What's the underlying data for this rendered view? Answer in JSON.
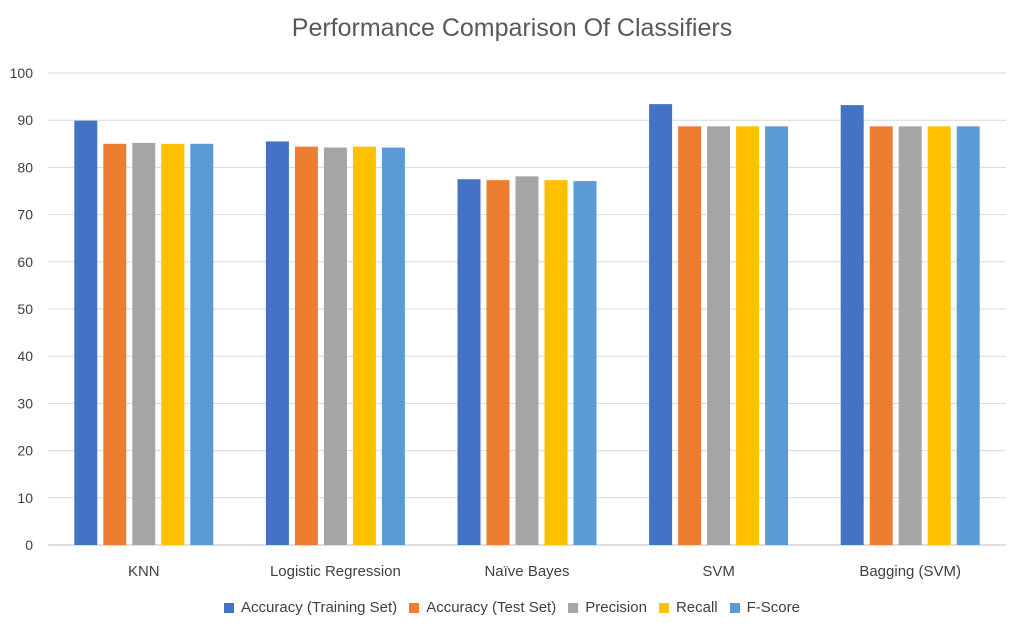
{
  "chart_data": {
    "type": "bar",
    "title": "Performance Comparison Of Classifiers",
    "xlabel": "",
    "ylabel": "",
    "ylim": [
      0,
      100
    ],
    "yticks": [
      "0",
      "10",
      "20",
      "30",
      "40",
      "50",
      "60",
      "70",
      "80",
      "90",
      "100"
    ],
    "grid": true,
    "legend_position": "bottom",
    "categories": [
      "KNN",
      "Logistic Regression",
      "Naïve Bayes",
      "SVM",
      "Bagging (SVM)"
    ],
    "series": [
      {
        "name": "Accuracy (Training Set)",
        "color": "#4472C4",
        "values": [
          89.9,
          85.5,
          77.5,
          93.4,
          93.2
        ]
      },
      {
        "name": "Accuracy (Test Set)",
        "color": "#ED7D31",
        "values": [
          85.0,
          84.4,
          77.3,
          88.7,
          88.7
        ]
      },
      {
        "name": "Precision",
        "color": "#A5A5A5",
        "values": [
          85.2,
          84.2,
          78.1,
          88.7,
          88.7
        ]
      },
      {
        "name": "Recall",
        "color": "#FFC000",
        "values": [
          85.0,
          84.4,
          77.3,
          88.7,
          88.7
        ]
      },
      {
        "name": "F-Score",
        "color": "#5B9BD5",
        "values": [
          85.0,
          84.2,
          77.1,
          88.7,
          88.7
        ]
      }
    ]
  }
}
